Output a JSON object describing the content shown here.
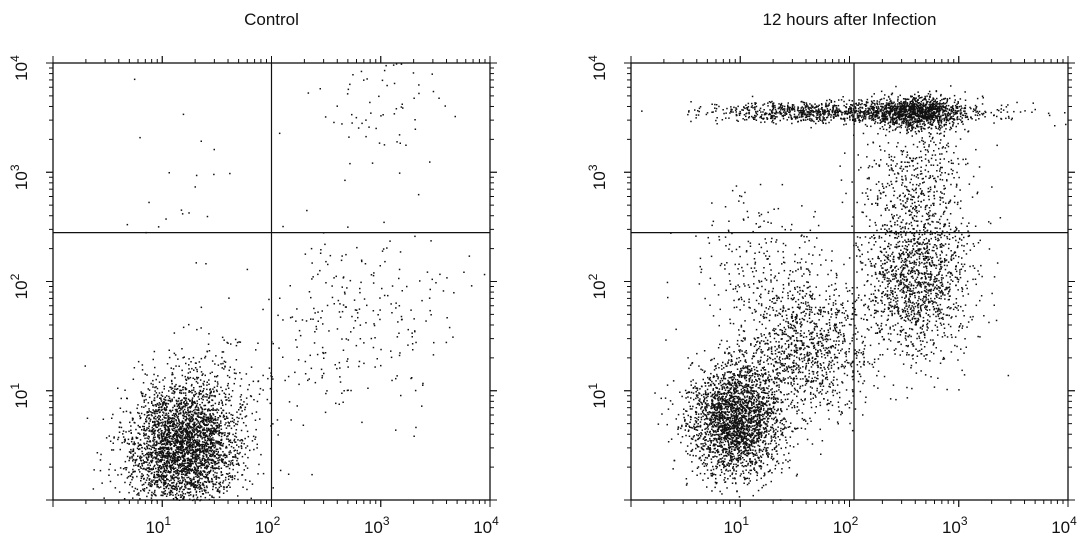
{
  "chart_data": [
    {
      "type": "scatter",
      "title": "Control",
      "xlabel": "",
      "ylabel": "",
      "xscale": "log",
      "yscale": "log",
      "xlim": [
        1,
        10000
      ],
      "ylim": [
        1,
        10000
      ],
      "x_ticks": [
        {
          "base": "10",
          "exp": "1"
        },
        {
          "base": "10",
          "exp": "2"
        },
        {
          "base": "10",
          "exp": "3"
        },
        {
          "base": "10",
          "exp": "4"
        }
      ],
      "y_ticks": [
        {
          "base": "10",
          "exp": "1"
        },
        {
          "base": "10",
          "exp": "2"
        },
        {
          "base": "10",
          "exp": "3"
        },
        {
          "base": "10",
          "exp": "4"
        }
      ],
      "quadrant_gates": {
        "x": 100,
        "y": 280
      },
      "grid": false,
      "legend": "none",
      "point_color": "#111111",
      "populations": [
        {
          "name": "",
          "center": [
            15,
            3
          ],
          "spread_log": [
            0.24,
            0.28
          ],
          "count": 3200
        },
        {
          "name": "",
          "center": [
            30,
            8
          ],
          "spread_log": [
            0.3,
            0.3
          ],
          "count": 300
        },
        {
          "name": "",
          "center": [
            600,
            40
          ],
          "spread_log": [
            0.45,
            0.4
          ],
          "count": 260
        },
        {
          "name": "",
          "center": [
            1000,
            4000
          ],
          "spread_log": [
            0.3,
            0.3
          ],
          "count": 70
        },
        {
          "name": "",
          "center": [
            10,
            1000
          ],
          "spread_log": [
            0.5,
            0.5
          ],
          "count": 22
        }
      ]
    },
    {
      "type": "scatter",
      "title": "12 hours after Infection",
      "xlabel": "",
      "ylabel": "",
      "xscale": "log",
      "yscale": "log",
      "xlim": [
        1,
        10000
      ],
      "ylim": [
        1,
        10000
      ],
      "x_ticks": [
        {
          "base": "10",
          "exp": "1"
        },
        {
          "base": "10",
          "exp": "2"
        },
        {
          "base": "10",
          "exp": "3"
        },
        {
          "base": "10",
          "exp": "4"
        }
      ],
      "y_ticks": [
        {
          "base": "10",
          "exp": "1"
        },
        {
          "base": "10",
          "exp": "2"
        },
        {
          "base": "10",
          "exp": "3"
        },
        {
          "base": "10",
          "exp": "4"
        }
      ],
      "quadrant_gates": {
        "x": 110,
        "y": 280
      },
      "grid": false,
      "legend": "none",
      "point_color": "#111111",
      "populations": [
        {
          "name": "",
          "center": [
            9,
            5.5
          ],
          "spread_log": [
            0.22,
            0.26
          ],
          "count": 2600
        },
        {
          "name": "",
          "center": [
            40,
            25
          ],
          "spread_log": [
            0.3,
            0.3
          ],
          "count": 1100
        },
        {
          "name": "",
          "center": [
            15,
            150
          ],
          "spread_log": [
            0.3,
            0.3
          ],
          "count": 220
        },
        {
          "name": "",
          "center": [
            400,
            100
          ],
          "spread_log": [
            0.25,
            0.35
          ],
          "count": 1400
        },
        {
          "name": "",
          "center": [
            400,
            800
          ],
          "spread_log": [
            0.25,
            0.3
          ],
          "count": 500
        },
        {
          "name": "",
          "center": [
            100,
            3600
          ],
          "spread_log": [
            0.65,
            0.05
          ],
          "count": 1200
        },
        {
          "name": "",
          "center": [
            400,
            3600
          ],
          "spread_log": [
            0.2,
            0.08
          ],
          "count": 900
        }
      ]
    }
  ]
}
